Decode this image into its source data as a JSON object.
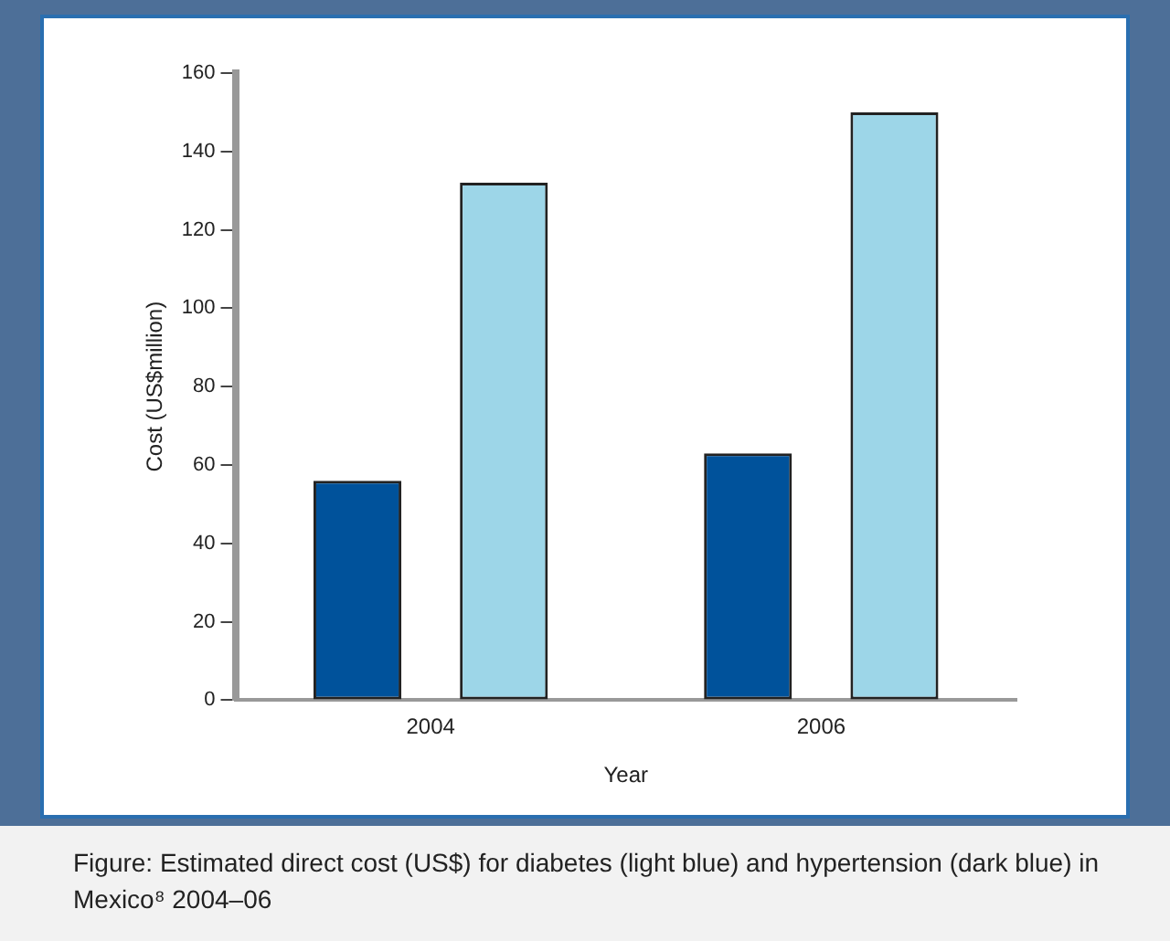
{
  "chart_data": {
    "type": "bar",
    "xlabel": "Year",
    "ylabel": "Cost (US$million)",
    "categories": [
      "2004",
      "2006"
    ],
    "series": [
      {
        "color": "#00529b",
        "values": [
          56,
          63
        ]
      },
      {
        "color": "#9dd6e8",
        "values": [
          132,
          150
        ]
      }
    ],
    "ylim": [
      0,
      160
    ],
    "yticks": [
      0,
      20,
      40,
      60,
      80,
      100,
      120,
      140,
      160
    ],
    "grid": false,
    "legend": false,
    "annotations": [
      "Figure: Estimated direct cost (US$) for diabetes (light blue) and hypertension (dark blue) in Mexico⁸ 2004–06"
    ]
  }
}
